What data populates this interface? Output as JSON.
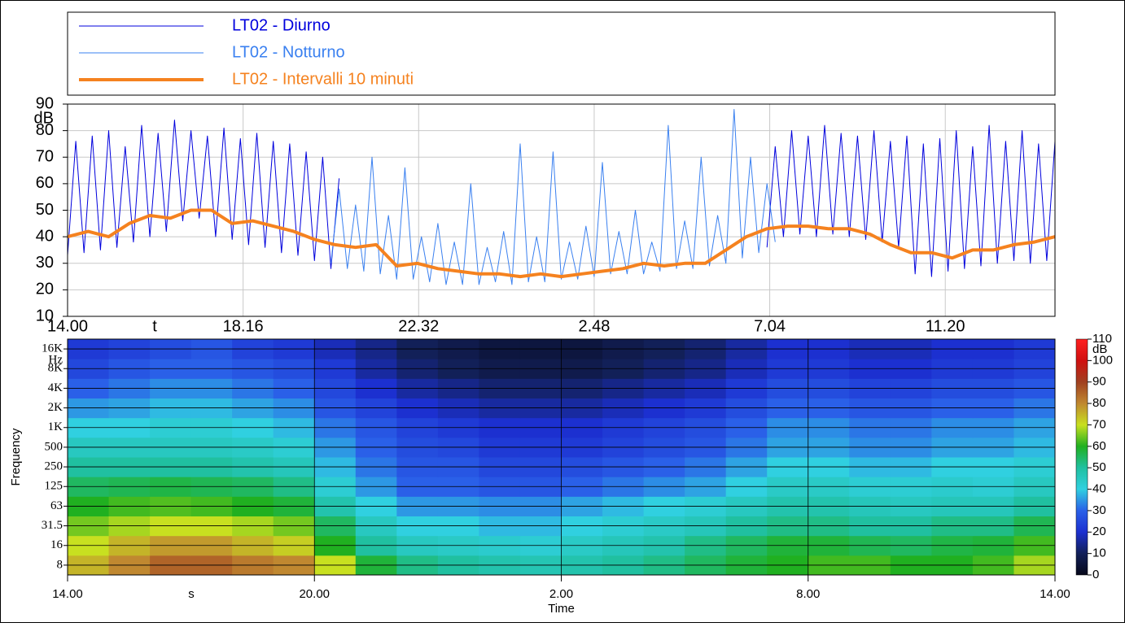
{
  "chart_data": [
    {
      "type": "line",
      "xlabel": "t",
      "ylabel": "dB",
      "xlim": [
        0,
        24
      ],
      "ylim": [
        10,
        90
      ],
      "yticks": [
        10,
        20,
        30,
        40,
        50,
        60,
        70,
        80,
        90
      ],
      "xticks": [
        {
          "value": 0,
          "label": "14.00"
        },
        {
          "value": 4.2667,
          "label": "18.16"
        },
        {
          "value": 8.5333,
          "label": "22.32"
        },
        {
          "value": 12.8,
          "label": "2.48"
        },
        {
          "value": 17.0667,
          "label": "7.04"
        },
        {
          "value": 21.3333,
          "label": "11.20"
        }
      ],
      "grid": true,
      "x": [
        0,
        0.2,
        0.4,
        0.6,
        0.8,
        1,
        1.2,
        1.4,
        1.6,
        1.8,
        2,
        2.2,
        2.4,
        2.6,
        2.8,
        3,
        3.2,
        3.4,
        3.6,
        3.8,
        4,
        4.2,
        4.4,
        4.6,
        4.8,
        5,
        5.2,
        5.4,
        5.6,
        5.8,
        6,
        6.2,
        6.4,
        6.6,
        6.8,
        7,
        7.2,
        7.4,
        7.6,
        7.8,
        8,
        8.2,
        8.4,
        8.6,
        8.8,
        9,
        9.2,
        9.4,
        9.6,
        9.8,
        10,
        10.2,
        10.4,
        10.6,
        10.8,
        11,
        11.2,
        11.4,
        11.6,
        11.8,
        12,
        12.2,
        12.4,
        12.6,
        12.8,
        13,
        13.2,
        13.4,
        13.6,
        13.8,
        14,
        14.2,
        14.4,
        14.6,
        14.8,
        15,
        15.2,
        15.4,
        15.6,
        15.8,
        16,
        16.2,
        16.4,
        16.6,
        16.8,
        17,
        17.2,
        17.4,
        17.6,
        17.8,
        18,
        18.2,
        18.4,
        18.6,
        18.8,
        19,
        19.2,
        19.4,
        19.6,
        19.8,
        20,
        20.2,
        20.4,
        20.6,
        20.8,
        21,
        21.2,
        21.4,
        21.6,
        21.8,
        22,
        22.2,
        22.4,
        22.6,
        22.8,
        23,
        23.2,
        23.4,
        23.6,
        23.8,
        24
      ],
      "series": [
        {
          "name": "LT02 - Diurno",
          "color": "#0000dd",
          "line_width": 1,
          "values": [
            33,
            76,
            34,
            78,
            35,
            80,
            36,
            74,
            38,
            82,
            40,
            79,
            42,
            84,
            46,
            80,
            47,
            78,
            40,
            81,
            39,
            77,
            37,
            79,
            36,
            76,
            34,
            75,
            33,
            72,
            31,
            70,
            28,
            62,
            null,
            null,
            null,
            null,
            null,
            null,
            null,
            null,
            null,
            null,
            null,
            null,
            null,
            null,
            null,
            null,
            null,
            null,
            null,
            null,
            null,
            null,
            null,
            null,
            null,
            null,
            null,
            null,
            null,
            null,
            null,
            null,
            null,
            null,
            null,
            null,
            null,
            null,
            null,
            null,
            null,
            null,
            null,
            null,
            null,
            null,
            null,
            null,
            null,
            null,
            null,
            36,
            74,
            40,
            80,
            41,
            78,
            40,
            82,
            41,
            79,
            40,
            78,
            39,
            80,
            38,
            76,
            36,
            78,
            26,
            75,
            25,
            77,
            27,
            80,
            28,
            74,
            29,
            82,
            30,
            76,
            31,
            80,
            30,
            75,
            31,
            76
          ]
        },
        {
          "name": "LT02 - Notturno",
          "color": "#3a80f0",
          "line_width": 1,
          "values": [
            null,
            null,
            null,
            null,
            null,
            null,
            null,
            null,
            null,
            null,
            null,
            null,
            null,
            null,
            null,
            null,
            null,
            null,
            null,
            null,
            null,
            null,
            null,
            null,
            null,
            null,
            null,
            null,
            null,
            null,
            null,
            null,
            30,
            58,
            28,
            52,
            27,
            70,
            26,
            48,
            24,
            66,
            24,
            40,
            23,
            45,
            22,
            38,
            22,
            60,
            22,
            36,
            23,
            42,
            22,
            75,
            23,
            40,
            23,
            72,
            24,
            38,
            24,
            44,
            25,
            68,
            26,
            42,
            26,
            50,
            26,
            38,
            27,
            82,
            28,
            46,
            28,
            70,
            29,
            48,
            30,
            88,
            32,
            70,
            34,
            60,
            38,
            null,
            null,
            null,
            null,
            null,
            null,
            null,
            null,
            null,
            null,
            null,
            null,
            null,
            null,
            null,
            null,
            null,
            null,
            null,
            null,
            null,
            null,
            null,
            null,
            null,
            null,
            null,
            null,
            null,
            null,
            null,
            null,
            null,
            null
          ]
        },
        {
          "name": "LT02 - Intervalli 10 minuti",
          "color": "#f5821f",
          "line_width": 4,
          "x": [
            0,
            0.5,
            1,
            1.5,
            2,
            2.5,
            3,
            3.5,
            4,
            4.5,
            5,
            5.5,
            6,
            6.5,
            7,
            7.5,
            8,
            8.5,
            9,
            9.5,
            10,
            10.5,
            11,
            11.5,
            12,
            12.5,
            13,
            13.5,
            14,
            14.5,
            15,
            15.5,
            16,
            16.5,
            17,
            17.5,
            18,
            18.5,
            19,
            19.5,
            20,
            20.5,
            21,
            21.5,
            22,
            22.5,
            23,
            23.5,
            24
          ],
          "values": [
            40,
            42,
            40,
            45,
            48,
            47,
            50,
            50,
            45,
            46,
            44,
            42,
            39,
            37,
            36,
            37,
            29,
            30,
            28,
            27,
            26,
            26,
            25,
            26,
            25,
            26,
            27,
            28,
            30,
            29,
            30,
            30,
            35,
            40,
            43,
            44,
            44,
            43,
            43,
            41,
            37,
            34,
            34,
            32,
            35,
            35,
            37,
            38,
            40
          ]
        }
      ]
    },
    {
      "type": "heatmap",
      "xlabel": "Time",
      "x_unit": "s",
      "ylabel": "Frequency",
      "y_unit": "Hz",
      "zlabel": "dB",
      "xlim": [
        0,
        24
      ],
      "xticks": [
        {
          "value": 0,
          "label": "14.00"
        },
        {
          "value": 6,
          "label": "20.00"
        },
        {
          "value": 12,
          "label": "2.00"
        },
        {
          "value": 18,
          "label": "8.00"
        },
        {
          "value": 24,
          "label": "14.00"
        }
      ],
      "x_edges": [
        0,
        1,
        2,
        3,
        4,
        5,
        6,
        7,
        8,
        9,
        10,
        11,
        12,
        13,
        14,
        15,
        16,
        17,
        18,
        19,
        20,
        21,
        22,
        23,
        24
      ],
      "y_categories": [
        "8",
        "16",
        "31.5",
        "63",
        "125",
        "250",
        "500",
        "1K",
        "2K",
        "4K",
        "8K",
        "16K"
      ],
      "zlim": [
        0,
        110
      ],
      "zticks": [
        0,
        10,
        20,
        30,
        40,
        50,
        60,
        70,
        80,
        90,
        100,
        110
      ],
      "colors": [
        "#06081a",
        "#122058",
        "#1c30d0",
        "#2a60e8",
        "#30d0e0",
        "#20c0a0",
        "#20b020",
        "#c8e020",
        "#c08830",
        "#a04020",
        "#d01010",
        "#ff2020"
      ],
      "z": [
        [
          75,
          80,
          85,
          85,
          82,
          80,
          70,
          58,
          52,
          50,
          48,
          47,
          48,
          50,
          52,
          55,
          58,
          60,
          62,
          62,
          60,
          60,
          62,
          68
        ],
        [
          70,
          75,
          78,
          78,
          75,
          72,
          60,
          50,
          45,
          44,
          43,
          42,
          44,
          46,
          48,
          52,
          55,
          58,
          58,
          56,
          55,
          57,
          58,
          62
        ],
        [
          65,
          68,
          70,
          70,
          68,
          65,
          55,
          45,
          40,
          40,
          38,
          38,
          40,
          42,
          44,
          46,
          50,
          52,
          52,
          50,
          50,
          52,
          52,
          56
        ],
        [
          60,
          62,
          63,
          62,
          60,
          58,
          48,
          40,
          35,
          35,
          34,
          34,
          36,
          38,
          40,
          42,
          45,
          48,
          48,
          46,
          45,
          46,
          46,
          50
        ],
        [
          55,
          56,
          57,
          56,
          55,
          52,
          42,
          35,
          30,
          30,
          28,
          28,
          30,
          32,
          34,
          36,
          40,
          44,
          44,
          42,
          42,
          43,
          42,
          45
        ],
        [
          50,
          50,
          50,
          50,
          48,
          46,
          38,
          32,
          28,
          28,
          25,
          25,
          26,
          28,
          30,
          32,
          36,
          40,
          40,
          38,
          38,
          40,
          40,
          42
        ],
        [
          45,
          45,
          45,
          45,
          44,
          42,
          35,
          30,
          26,
          25,
          22,
          22,
          22,
          24,
          26,
          28,
          32,
          36,
          36,
          34,
          34,
          36,
          36,
          38
        ],
        [
          40,
          40,
          42,
          42,
          40,
          38,
          32,
          28,
          24,
          22,
          20,
          20,
          20,
          22,
          24,
          26,
          30,
          34,
          34,
          32,
          32,
          34,
          34,
          36
        ],
        [
          35,
          36,
          38,
          38,
          36,
          34,
          28,
          24,
          20,
          18,
          16,
          16,
          16,
          18,
          20,
          22,
          26,
          30,
          30,
          28,
          28,
          30,
          30,
          32
        ],
        [
          30,
          32,
          34,
          34,
          32,
          30,
          25,
          20,
          16,
          14,
          12,
          12,
          12,
          14,
          16,
          18,
          22,
          26,
          26,
          24,
          24,
          26,
          26,
          28
        ],
        [
          25,
          28,
          30,
          30,
          28,
          26,
          22,
          16,
          12,
          10,
          8,
          8,
          8,
          10,
          12,
          14,
          18,
          22,
          22,
          20,
          20,
          22,
          22,
          24
        ],
        [
          22,
          24,
          26,
          28,
          24,
          22,
          18,
          14,
          10,
          8,
          6,
          6,
          6,
          8,
          10,
          12,
          16,
          20,
          20,
          18,
          18,
          20,
          20,
          22
        ]
      ]
    }
  ]
}
